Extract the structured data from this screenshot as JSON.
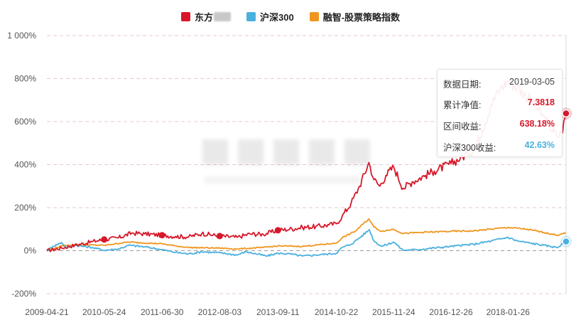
{
  "legend": {
    "items": [
      {
        "label": "东方",
        "color": "#d7182a",
        "redacted": true
      },
      {
        "label": "沪深300",
        "color": "#4ab0de"
      },
      {
        "label": "融智-股票策略指数",
        "color": "#f0961e"
      }
    ]
  },
  "tooltip": {
    "date_label": "数据日期:",
    "date_value": "2019-03-05",
    "nav_label": "累计净值:",
    "nav_value": "7.3818",
    "return_label": "区间收益:",
    "return_value": "638.18%",
    "hs300_label": "沪深300收益:",
    "hs300_value": "42.63%"
  },
  "chart_data": {
    "type": "line",
    "xlabel": "",
    "ylabel": "",
    "y_unit": "%",
    "ylim": [
      -200,
      1000
    ],
    "y_ticks": [
      "1 000%",
      "800%",
      "600%",
      "400%",
      "200%",
      "0%",
      "-200%"
    ],
    "y_tick_values": [
      1000,
      800,
      600,
      400,
      200,
      0,
      -200
    ],
    "x_ticks": [
      "2009-04-21",
      "2010-05-24",
      "2011-06-30",
      "2012-08-03",
      "2013-09-11",
      "2014-10-22",
      "2015-11-24",
      "2016-12-26",
      "2018-01-26"
    ],
    "x_range": [
      "2009-04-21",
      "2019-03-05"
    ],
    "grid": true,
    "legend_position": "top-center",
    "series": [
      {
        "name": "东方",
        "color": "#d7182a",
        "points": [
          [
            "2009-04-21",
            0
          ],
          [
            "2009-08-01",
            12
          ],
          [
            "2009-11-01",
            25
          ],
          [
            "2010-03-01",
            42
          ],
          [
            "2010-05-24",
            52
          ],
          [
            "2010-09-01",
            60
          ],
          [
            "2010-12-01",
            82
          ],
          [
            "2011-03-01",
            78
          ],
          [
            "2011-06-30",
            72
          ],
          [
            "2011-10-01",
            66
          ],
          [
            "2012-01-01",
            64
          ],
          [
            "2012-04-01",
            80
          ],
          [
            "2012-08-03",
            68
          ],
          [
            "2012-12-01",
            62
          ],
          [
            "2013-03-01",
            78
          ],
          [
            "2013-06-01",
            76
          ],
          [
            "2013-09-11",
            95
          ],
          [
            "2013-12-01",
            100
          ],
          [
            "2014-03-01",
            108
          ],
          [
            "2014-06-01",
            112
          ],
          [
            "2014-09-01",
            120
          ],
          [
            "2014-10-22",
            125
          ],
          [
            "2014-12-01",
            160
          ],
          [
            "2015-02-01",
            220
          ],
          [
            "2015-04-01",
            300
          ],
          [
            "2015-06-05",
            410
          ],
          [
            "2015-07-10",
            330
          ],
          [
            "2015-08-20",
            300
          ],
          [
            "2015-10-01",
            350
          ],
          [
            "2015-11-24",
            390
          ],
          [
            "2016-01-28",
            290
          ],
          [
            "2016-04-01",
            320
          ],
          [
            "2016-07-01",
            350
          ],
          [
            "2016-09-01",
            370
          ],
          [
            "2016-12-26",
            405
          ],
          [
            "2017-03-01",
            430
          ],
          [
            "2017-06-01",
            470
          ],
          [
            "2017-08-01",
            560
          ],
          [
            "2017-10-01",
            680
          ],
          [
            "2017-12-01",
            750
          ],
          [
            "2018-01-26",
            790
          ],
          [
            "2018-04-01",
            760
          ],
          [
            "2018-07-01",
            700
          ],
          [
            "2018-10-01",
            620
          ],
          [
            "2019-01-01",
            530
          ],
          [
            "2019-02-01",
            545
          ],
          [
            "2019-03-05",
            638
          ]
        ]
      },
      {
        "name": "沪深300",
        "color": "#4ab0de",
        "points": [
          [
            "2009-04-21",
            0
          ],
          [
            "2009-06-01",
            20
          ],
          [
            "2009-08-01",
            38
          ],
          [
            "2009-09-01",
            15
          ],
          [
            "2009-11-01",
            25
          ],
          [
            "2010-03-01",
            15
          ],
          [
            "2010-05-24",
            2
          ],
          [
            "2010-09-01",
            8
          ],
          [
            "2010-11-10",
            25
          ],
          [
            "2011-03-01",
            18
          ],
          [
            "2011-06-30",
            5
          ],
          [
            "2011-10-01",
            -8
          ],
          [
            "2012-01-01",
            -15
          ],
          [
            "2012-04-01",
            -5
          ],
          [
            "2012-08-03",
            -10
          ],
          [
            "2012-12-01",
            -20
          ],
          [
            "2013-02-01",
            -5
          ],
          [
            "2013-06-25",
            -25
          ],
          [
            "2013-09-11",
            -12
          ],
          [
            "2013-12-01",
            -15
          ],
          [
            "2014-03-01",
            -25
          ],
          [
            "2014-06-01",
            -20
          ],
          [
            "2014-10-22",
            -12
          ],
          [
            "2014-12-01",
            15
          ],
          [
            "2015-02-01",
            30
          ],
          [
            "2015-04-01",
            60
          ],
          [
            "2015-06-08",
            98
          ],
          [
            "2015-07-10",
            45
          ],
          [
            "2015-09-01",
            20
          ],
          [
            "2015-11-24",
            40
          ],
          [
            "2016-01-28",
            2
          ],
          [
            "2016-05-01",
            5
          ],
          [
            "2016-12-26",
            20
          ],
          [
            "2017-06-01",
            30
          ],
          [
            "2017-10-01",
            45
          ],
          [
            "2018-01-26",
            62
          ],
          [
            "2018-04-01",
            45
          ],
          [
            "2018-07-01",
            35
          ],
          [
            "2018-10-01",
            25
          ],
          [
            "2019-01-03",
            15
          ],
          [
            "2019-03-05",
            42.63
          ]
        ]
      },
      {
        "name": "融智-股票策略指数",
        "color": "#f0961e",
        "points": [
          [
            "2009-04-21",
            0
          ],
          [
            "2009-08-01",
            22
          ],
          [
            "2009-11-01",
            28
          ],
          [
            "2010-05-24",
            25
          ],
          [
            "2010-11-10",
            40
          ],
          [
            "2011-06-30",
            32
          ],
          [
            "2011-10-01",
            22
          ],
          [
            "2012-01-01",
            15
          ],
          [
            "2012-08-03",
            12
          ],
          [
            "2012-12-01",
            8
          ],
          [
            "2013-06-01",
            15
          ],
          [
            "2013-09-11",
            22
          ],
          [
            "2014-03-01",
            20
          ],
          [
            "2014-10-22",
            35
          ],
          [
            "2014-12-01",
            60
          ],
          [
            "2015-03-01",
            90
          ],
          [
            "2015-06-05",
            148
          ],
          [
            "2015-07-10",
            110
          ],
          [
            "2015-09-01",
            90
          ],
          [
            "2015-11-24",
            100
          ],
          [
            "2016-01-28",
            80
          ],
          [
            "2016-06-01",
            85
          ],
          [
            "2016-12-26",
            90
          ],
          [
            "2017-06-01",
            92
          ],
          [
            "2018-01-26",
            108
          ],
          [
            "2018-06-01",
            100
          ],
          [
            "2018-10-01",
            85
          ],
          [
            "2019-01-03",
            72
          ],
          [
            "2019-03-05",
            82
          ]
        ]
      }
    ],
    "markers": [
      {
        "series": "东方",
        "date": "2010-05-24",
        "value": 52
      },
      {
        "series": "东方",
        "date": "2011-06-30",
        "value": 72
      },
      {
        "series": "东方",
        "date": "2012-08-03",
        "value": 68
      },
      {
        "series": "东方",
        "date": "2013-09-11",
        "value": 95
      },
      {
        "series": "东方",
        "date": "2019-03-05",
        "value": 638
      },
      {
        "series": "沪深300",
        "date": "2019-03-05",
        "value": 42.63
      }
    ]
  }
}
